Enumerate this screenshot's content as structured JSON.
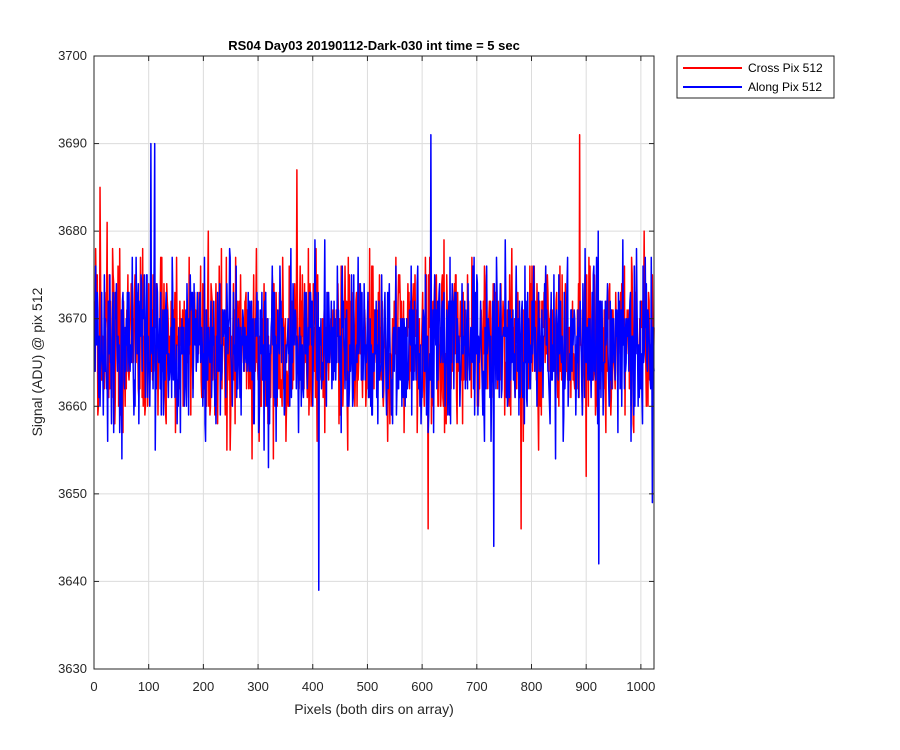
{
  "chart_data": {
    "type": "line",
    "title": "RS04 Day03 20190112-Dark-030 int time = 5 sec",
    "xlabel": "Pixels (both dirs on array)",
    "ylabel": "Signal (ADU) @ pix 512",
    "xlim": [
      0,
      1024
    ],
    "ylim": [
      3630,
      3700
    ],
    "xticks": [
      0,
      100,
      200,
      300,
      400,
      500,
      600,
      700,
      800,
      900,
      1000
    ],
    "yticks": [
      3630,
      3640,
      3650,
      3660,
      3670,
      3680,
      3690,
      3700
    ],
    "grid": true,
    "legend_position": "outside-top-right",
    "series": [
      {
        "name": "Cross Pix 512",
        "color": "#ff0000",
        "noise": {
          "n_points": 1024,
          "mean": 3667,
          "spread": 6,
          "seed": 12345
        },
        "notable_points": [
          {
            "x": 10,
            "y": 3685
          },
          {
            "x": 370,
            "y": 3687
          },
          {
            "x": 610,
            "y": 3646
          },
          {
            "x": 780,
            "y": 3646
          },
          {
            "x": 887,
            "y": 3691
          }
        ]
      },
      {
        "name": "Along Pix 512",
        "color": "#0000ff",
        "noise": {
          "n_points": 1024,
          "mean": 3667,
          "spread": 6,
          "seed": 67890
        },
        "notable_points": [
          {
            "x": 103,
            "y": 3690
          },
          {
            "x": 110,
            "y": 3690
          },
          {
            "x": 410,
            "y": 3639
          },
          {
            "x": 615,
            "y": 3691
          },
          {
            "x": 730,
            "y": 3644
          },
          {
            "x": 922,
            "y": 3642
          },
          {
            "x": 1020,
            "y": 3649
          }
        ]
      }
    ]
  }
}
